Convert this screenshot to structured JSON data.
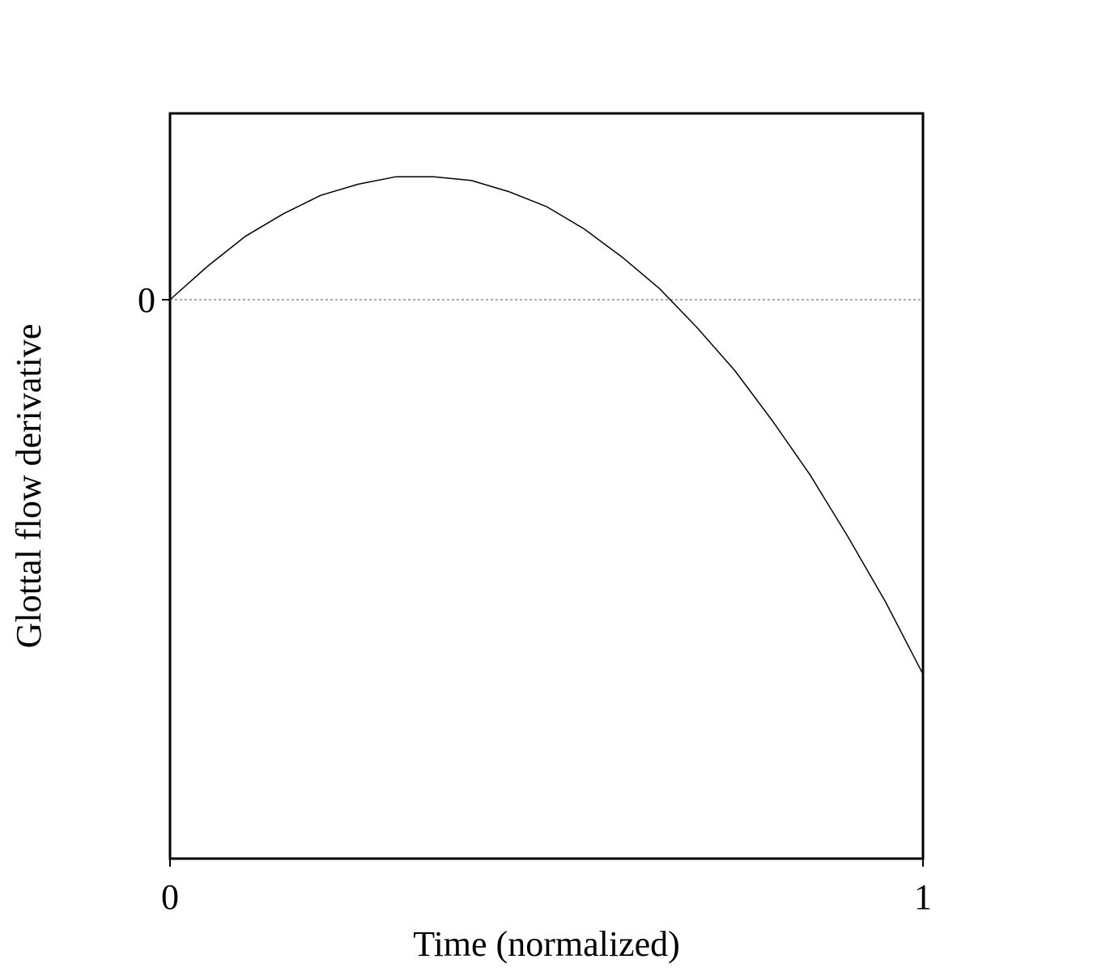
{
  "chart_data": {
    "type": "line",
    "x_label": "Time (normalized)",
    "y_label": "Glottal flow derivative",
    "x": [
      0,
      0.05,
      0.1,
      0.15,
      0.2,
      0.25,
      0.3,
      0.35,
      0.4,
      0.45,
      0.5,
      0.55,
      0.6,
      0.65,
      0.7,
      0.75,
      0.8,
      0.85,
      0.9,
      0.95,
      1
    ],
    "series": [
      {
        "color": "#000000",
        "values": [
          0,
          0.18,
          0.34,
          0.46,
          0.56,
          0.62,
          0.66,
          0.66,
          0.64,
          0.58,
          0.5,
          0.38,
          0.23,
          0.06,
          -0.15,
          -0.38,
          -0.65,
          -0.94,
          -1.27,
          -1.62,
          -2.01
        ]
      }
    ],
    "xlim": [
      0,
      1
    ],
    "xticks": [
      0,
      1
    ],
    "ylim": [
      -3,
      1
    ],
    "yticks": [
      0
    ],
    "zero_line": true,
    "grid": false
  }
}
